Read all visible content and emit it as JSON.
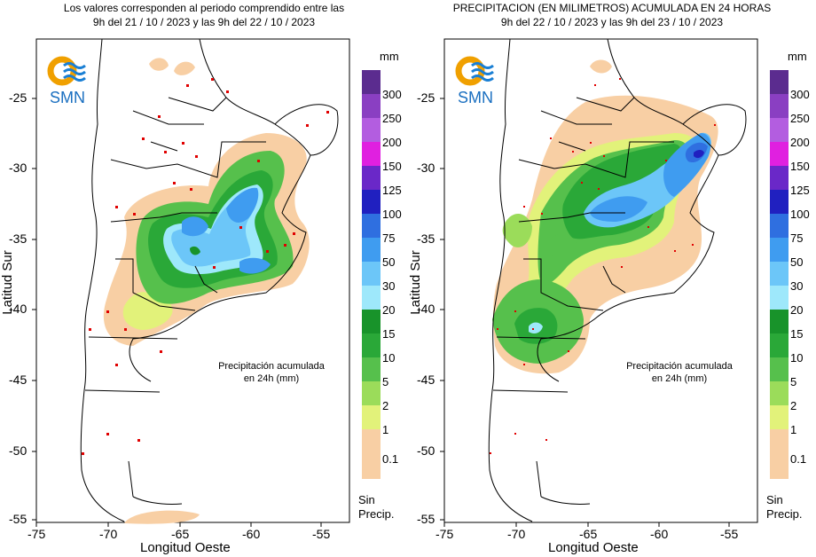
{
  "panels": [
    {
      "title_line1": "Los valores corresponden al periodo comprendido entre las",
      "title_line2": "9h del 21 / 10 / 2023  y las 9h del 22 / 10 / 2023",
      "logo_text": "SMN",
      "annotation_line1": "Precipitación acumulada",
      "annotation_line2": "en 24h (mm)"
    },
    {
      "title_line1": "PRECIPITACION (EN MILIMETROS) ACUMULADA EN 24 HORAS",
      "title_line2": "9h del 22 / 10 / 2023  y las 9h del 23 / 10 / 2023",
      "logo_text": "SMN",
      "annotation_line1": "Precipitación acumulada",
      "annotation_line2": "en 24h (mm)"
    }
  ],
  "axes": {
    "xlabel": "Longitud Oeste",
    "ylabel": "Latitud Sur",
    "x_ticks": [
      "-75",
      "-70",
      "-65",
      "-60",
      "-55"
    ],
    "y_ticks": [
      "-25",
      "-30",
      "-35",
      "-40",
      "-45",
      "-50",
      "-55"
    ]
  },
  "colorbar": {
    "unit": "mm",
    "no_precip_line1": "Sin",
    "no_precip_line2": "Precip.",
    "levels": [
      {
        "label": "300",
        "color": "#5b2c8f"
      },
      {
        "label": "250",
        "color": "#8a3fc2"
      },
      {
        "label": "200",
        "color": "#b35de0"
      },
      {
        "label": "150",
        "color": "#e020e0"
      },
      {
        "label": "125",
        "color": "#6a28c8"
      },
      {
        "label": "100",
        "color": "#2020c0"
      },
      {
        "label": "75",
        "color": "#2f6fe0"
      },
      {
        "label": "50",
        "color": "#3f9cf0"
      },
      {
        "label": "30",
        "color": "#6cc6f8"
      },
      {
        "label": "20",
        "color": "#9ee8fb"
      },
      {
        "label": "15",
        "color": "#18932a"
      },
      {
        "label": "10",
        "color": "#2aa838"
      },
      {
        "label": "5",
        "color": "#56c04c"
      },
      {
        "label": "2",
        "color": "#9bdc5a"
      },
      {
        "label": "1",
        "color": "#e2f27a"
      },
      {
        "label": "0.1",
        "color": "#f8cfa4"
      }
    ]
  }
}
